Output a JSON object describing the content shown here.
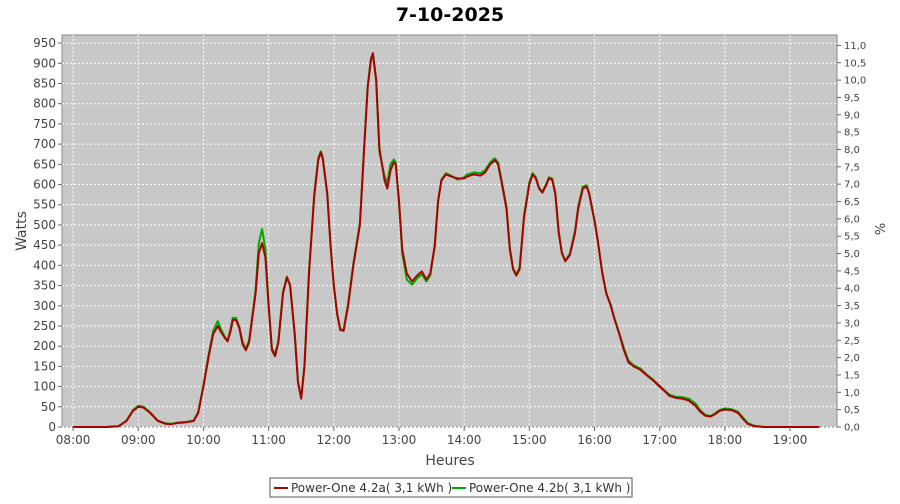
{
  "chart_data": {
    "type": "line",
    "title": "7-10-2025",
    "xlabel": "Heures",
    "ylabel": "Watts",
    "y2label": "%",
    "x_ticks": [
      "08:00",
      "09:00",
      "10:00",
      "11:00",
      "12:00",
      "13:00",
      "14:00",
      "15:00",
      "16:00",
      "17:00",
      "18:00",
      "19:00"
    ],
    "y_ticks": [
      0,
      50,
      100,
      150,
      200,
      250,
      300,
      350,
      400,
      450,
      500,
      550,
      600,
      650,
      700,
      750,
      800,
      850,
      900,
      950
    ],
    "y2_ticks": [
      "0,0",
      "0,5",
      "1,0",
      "1,5",
      "2,0",
      "2,5",
      "3,0",
      "3,5",
      "4,0",
      "4,5",
      "5,0",
      "5,5",
      "6,0",
      "6,5",
      "7,0",
      "7,5",
      "8,0",
      "8,5",
      "9,0",
      "9,5",
      "10,0",
      "10,5",
      "11,0"
    ],
    "xlim": [
      7.83,
      19.72
    ],
    "ylim": [
      0,
      970
    ],
    "y2lim": [
      0,
      11.3
    ],
    "grid": true,
    "legend_position": "bottom",
    "series": [
      {
        "name": "Power-One 4.2a( 3,1 kWh )",
        "color": "#aa0000",
        "points": [
          [
            8.0,
            0
          ],
          [
            8.5,
            0
          ],
          [
            8.7,
            2
          ],
          [
            8.82,
            15
          ],
          [
            8.92,
            40
          ],
          [
            9.0,
            50
          ],
          [
            9.08,
            48
          ],
          [
            9.18,
            35
          ],
          [
            9.3,
            15
          ],
          [
            9.42,
            8
          ],
          [
            9.5,
            7
          ],
          [
            9.6,
            10
          ],
          [
            9.75,
            12
          ],
          [
            9.85,
            15
          ],
          [
            9.92,
            35
          ],
          [
            10.0,
            100
          ],
          [
            10.08,
            175
          ],
          [
            10.15,
            230
          ],
          [
            10.22,
            250
          ],
          [
            10.27,
            235
          ],
          [
            10.33,
            220
          ],
          [
            10.37,
            212
          ],
          [
            10.42,
            240
          ],
          [
            10.45,
            265
          ],
          [
            10.5,
            265
          ],
          [
            10.55,
            245
          ],
          [
            10.6,
            205
          ],
          [
            10.65,
            190
          ],
          [
            10.7,
            210
          ],
          [
            10.75,
            270
          ],
          [
            10.8,
            330
          ],
          [
            10.85,
            430
          ],
          [
            10.9,
            455
          ],
          [
            10.95,
            420
          ],
          [
            11.0,
            300
          ],
          [
            11.05,
            190
          ],
          [
            11.1,
            175
          ],
          [
            11.15,
            210
          ],
          [
            11.22,
            330
          ],
          [
            11.28,
            370
          ],
          [
            11.33,
            350
          ],
          [
            11.4,
            230
          ],
          [
            11.45,
            110
          ],
          [
            11.5,
            70
          ],
          [
            11.55,
            150
          ],
          [
            11.62,
            380
          ],
          [
            11.7,
            570
          ],
          [
            11.76,
            660
          ],
          [
            11.8,
            680
          ],
          [
            11.83,
            665
          ],
          [
            11.9,
            575
          ],
          [
            11.95,
            450
          ],
          [
            12.0,
            350
          ],
          [
            12.05,
            280
          ],
          [
            12.1,
            240
          ],
          [
            12.15,
            238
          ],
          [
            12.22,
            300
          ],
          [
            12.3,
            400
          ],
          [
            12.4,
            500
          ],
          [
            12.47,
            700
          ],
          [
            12.52,
            840
          ],
          [
            12.57,
            910
          ],
          [
            12.6,
            925
          ],
          [
            12.65,
            860
          ],
          [
            12.7,
            690
          ],
          [
            12.78,
            610
          ],
          [
            12.82,
            590
          ],
          [
            12.87,
            635
          ],
          [
            12.92,
            655
          ],
          [
            12.95,
            650
          ],
          [
            13.0,
            560
          ],
          [
            13.05,
            440
          ],
          [
            13.12,
            380
          ],
          [
            13.2,
            360
          ],
          [
            13.28,
            375
          ],
          [
            13.35,
            385
          ],
          [
            13.42,
            365
          ],
          [
            13.48,
            380
          ],
          [
            13.55,
            450
          ],
          [
            13.6,
            560
          ],
          [
            13.65,
            610
          ],
          [
            13.72,
            625
          ],
          [
            13.8,
            620
          ],
          [
            13.9,
            615
          ],
          [
            14.0,
            615
          ],
          [
            14.05,
            620
          ],
          [
            14.15,
            625
          ],
          [
            14.25,
            622
          ],
          [
            14.32,
            630
          ],
          [
            14.4,
            650
          ],
          [
            14.47,
            660
          ],
          [
            14.52,
            650
          ],
          [
            14.58,
            600
          ],
          [
            14.65,
            540
          ],
          [
            14.7,
            440
          ],
          [
            14.75,
            390
          ],
          [
            14.8,
            375
          ],
          [
            14.85,
            390
          ],
          [
            14.92,
            520
          ],
          [
            15.0,
            600
          ],
          [
            15.05,
            625
          ],
          [
            15.1,
            615
          ],
          [
            15.15,
            590
          ],
          [
            15.2,
            580
          ],
          [
            15.25,
            595
          ],
          [
            15.3,
            615
          ],
          [
            15.35,
            612
          ],
          [
            15.4,
            575
          ],
          [
            15.45,
            480
          ],
          [
            15.5,
            430
          ],
          [
            15.55,
            410
          ],
          [
            15.62,
            425
          ],
          [
            15.7,
            480
          ],
          [
            15.75,
            540
          ],
          [
            15.82,
            590
          ],
          [
            15.88,
            595
          ],
          [
            15.92,
            575
          ],
          [
            16.0,
            510
          ],
          [
            16.05,
            460
          ],
          [
            16.12,
            380
          ],
          [
            16.18,
            330
          ],
          [
            16.25,
            300
          ],
          [
            16.3,
            270
          ],
          [
            16.38,
            230
          ],
          [
            16.45,
            190
          ],
          [
            16.52,
            160
          ],
          [
            16.6,
            150
          ],
          [
            16.7,
            142
          ],
          [
            16.8,
            128
          ],
          [
            16.9,
            115
          ],
          [
            17.0,
            100
          ],
          [
            17.08,
            88
          ],
          [
            17.15,
            77
          ],
          [
            17.25,
            72
          ],
          [
            17.35,
            70
          ],
          [
            17.45,
            65
          ],
          [
            17.55,
            52
          ],
          [
            17.62,
            38
          ],
          [
            17.7,
            28
          ],
          [
            17.78,
            26
          ],
          [
            17.85,
            32
          ],
          [
            17.92,
            40
          ],
          [
            18.0,
            43
          ],
          [
            18.1,
            42
          ],
          [
            18.2,
            35
          ],
          [
            18.28,
            20
          ],
          [
            18.35,
            8
          ],
          [
            18.45,
            2
          ],
          [
            18.6,
            0
          ],
          [
            19.45,
            0
          ]
        ]
      },
      {
        "name": "Power-One 4.2b( 3,1 kWh )",
        "color": "#00aa00",
        "points": [
          [
            8.0,
            0
          ],
          [
            8.5,
            0
          ],
          [
            8.7,
            2
          ],
          [
            8.82,
            16
          ],
          [
            8.92,
            42
          ],
          [
            9.0,
            53
          ],
          [
            9.08,
            50
          ],
          [
            9.18,
            37
          ],
          [
            9.3,
            16
          ],
          [
            9.42,
            9
          ],
          [
            9.5,
            8
          ],
          [
            9.6,
            11
          ],
          [
            9.75,
            13
          ],
          [
            9.85,
            16
          ],
          [
            9.92,
            37
          ],
          [
            10.0,
            103
          ],
          [
            10.08,
            180
          ],
          [
            10.15,
            238
          ],
          [
            10.22,
            262
          ],
          [
            10.27,
            242
          ],
          [
            10.33,
            222
          ],
          [
            10.37,
            214
          ],
          [
            10.42,
            245
          ],
          [
            10.45,
            270
          ],
          [
            10.5,
            270
          ],
          [
            10.55,
            248
          ],
          [
            10.6,
            210
          ],
          [
            10.65,
            193
          ],
          [
            10.7,
            214
          ],
          [
            10.75,
            275
          ],
          [
            10.8,
            340
          ],
          [
            10.85,
            455
          ],
          [
            10.9,
            490
          ],
          [
            10.95,
            440
          ],
          [
            11.0,
            305
          ],
          [
            11.05,
            195
          ],
          [
            11.1,
            180
          ],
          [
            11.15,
            214
          ],
          [
            11.22,
            335
          ],
          [
            11.28,
            372
          ],
          [
            11.33,
            352
          ],
          [
            11.4,
            232
          ],
          [
            11.45,
            112
          ],
          [
            11.5,
            72
          ],
          [
            11.55,
            155
          ],
          [
            11.62,
            385
          ],
          [
            11.7,
            575
          ],
          [
            11.76,
            665
          ],
          [
            11.8,
            682
          ],
          [
            11.83,
            668
          ],
          [
            11.9,
            578
          ],
          [
            11.95,
            452
          ],
          [
            12.0,
            352
          ],
          [
            12.05,
            282
          ],
          [
            12.1,
            242
          ],
          [
            12.15,
            240
          ],
          [
            12.22,
            305
          ],
          [
            12.3,
            405
          ],
          [
            12.4,
            505
          ],
          [
            12.47,
            705
          ],
          [
            12.52,
            845
          ],
          [
            12.57,
            912
          ],
          [
            12.6,
            922
          ],
          [
            12.65,
            855
          ],
          [
            12.7,
            680
          ],
          [
            12.78,
            620
          ],
          [
            12.82,
            605
          ],
          [
            12.87,
            650
          ],
          [
            12.92,
            662
          ],
          [
            12.95,
            655
          ],
          [
            13.0,
            555
          ],
          [
            13.05,
            430
          ],
          [
            13.12,
            365
          ],
          [
            13.2,
            352
          ],
          [
            13.28,
            368
          ],
          [
            13.35,
            378
          ],
          [
            13.42,
            360
          ],
          [
            13.48,
            375
          ],
          [
            13.55,
            448
          ],
          [
            13.6,
            558
          ],
          [
            13.65,
            612
          ],
          [
            13.72,
            628
          ],
          [
            13.8,
            622
          ],
          [
            13.9,
            612
          ],
          [
            14.0,
            618
          ],
          [
            14.05,
            625
          ],
          [
            14.15,
            630
          ],
          [
            14.25,
            628
          ],
          [
            14.32,
            635
          ],
          [
            14.4,
            655
          ],
          [
            14.47,
            665
          ],
          [
            14.52,
            655
          ],
          [
            14.58,
            605
          ],
          [
            14.65,
            545
          ],
          [
            14.7,
            445
          ],
          [
            14.75,
            392
          ],
          [
            14.8,
            378
          ],
          [
            14.85,
            395
          ],
          [
            14.92,
            525
          ],
          [
            15.0,
            605
          ],
          [
            15.05,
            628
          ],
          [
            15.1,
            618
          ],
          [
            15.15,
            592
          ],
          [
            15.2,
            582
          ],
          [
            15.25,
            598
          ],
          [
            15.3,
            618
          ],
          [
            15.35,
            615
          ],
          [
            15.4,
            578
          ],
          [
            15.45,
            485
          ],
          [
            15.5,
            432
          ],
          [
            15.55,
            412
          ],
          [
            15.62,
            428
          ],
          [
            15.7,
            485
          ],
          [
            15.75,
            545
          ],
          [
            15.82,
            595
          ],
          [
            15.88,
            598
          ],
          [
            15.92,
            578
          ],
          [
            16.0,
            512
          ],
          [
            16.05,
            462
          ],
          [
            16.12,
            382
          ],
          [
            16.18,
            332
          ],
          [
            16.25,
            302
          ],
          [
            16.3,
            272
          ],
          [
            16.38,
            232
          ],
          [
            16.45,
            195
          ],
          [
            16.52,
            165
          ],
          [
            16.6,
            153
          ],
          [
            16.7,
            145
          ],
          [
            16.8,
            130
          ],
          [
            16.9,
            117
          ],
          [
            17.0,
            102
          ],
          [
            17.08,
            90
          ],
          [
            17.15,
            80
          ],
          [
            17.25,
            75
          ],
          [
            17.35,
            74
          ],
          [
            17.45,
            70
          ],
          [
            17.55,
            58
          ],
          [
            17.62,
            42
          ],
          [
            17.7,
            30
          ],
          [
            17.78,
            27
          ],
          [
            17.85,
            34
          ],
          [
            17.92,
            42
          ],
          [
            18.0,
            46
          ],
          [
            18.1,
            44
          ],
          [
            18.2,
            38
          ],
          [
            18.28,
            23
          ],
          [
            18.35,
            10
          ],
          [
            18.45,
            3
          ],
          [
            18.6,
            0
          ],
          [
            19.45,
            0
          ]
        ]
      }
    ]
  }
}
